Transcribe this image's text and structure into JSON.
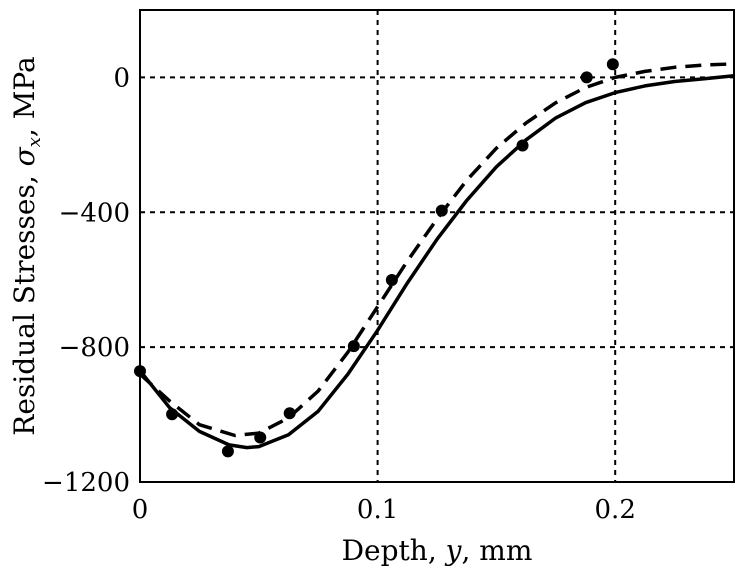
{
  "chart_data": {
    "type": "line",
    "title": "",
    "xlabel": "Depth, y, mm",
    "ylabel": "Residual Stresses, σx, MPa",
    "xlim": [
      0,
      0.25
    ],
    "ylim": [
      -1200,
      200
    ],
    "xticks": [
      0,
      0.1,
      0.2
    ],
    "xtick_labels": [
      "0",
      "0.1",
      "0.2"
    ],
    "yticks": [
      0,
      -400,
      -800,
      -1200
    ],
    "ytick_labels": [
      "0",
      "−400",
      "−800",
      "−1200"
    ],
    "grid": true,
    "series": [
      {
        "name": "measured",
        "style": "markers",
        "x": [
          0,
          0.0135,
          0.037,
          0.0506,
          0.063,
          0.09,
          0.106,
          0.127,
          0.161,
          0.188,
          0.199
        ],
        "y": [
          -871,
          -999,
          -1109,
          -1068,
          -996,
          -797,
          -601,
          -395,
          -202,
          0,
          39
        ]
      },
      {
        "name": "solid",
        "style": "solid",
        "x": [
          0,
          0.0125,
          0.025,
          0.0375,
          0.045,
          0.05,
          0.0625,
          0.075,
          0.0875,
          0.1,
          0.1125,
          0.125,
          0.1375,
          0.15,
          0.1625,
          0.175,
          0.1875,
          0.2,
          0.2125,
          0.225,
          0.2375,
          0.25
        ],
        "y": [
          -870,
          -980,
          -1050,
          -1090,
          -1098,
          -1095,
          -1060,
          -990,
          -880,
          -750,
          -610,
          -480,
          -365,
          -265,
          -185,
          -120,
          -75,
          -45,
          -25,
          -12,
          -4,
          5
        ]
      },
      {
        "name": "dashed",
        "style": "dashed",
        "x": [
          0,
          0.0125,
          0.025,
          0.04,
          0.05,
          0.0625,
          0.075,
          0.0875,
          0.1,
          0.1125,
          0.125,
          0.1375,
          0.15,
          0.1625,
          0.175,
          0.1875,
          0.2,
          0.2125,
          0.225,
          0.2375,
          0.25
        ],
        "y": [
          -880,
          -960,
          -1030,
          -1062,
          -1055,
          -1010,
          -930,
          -815,
          -680,
          -545,
          -420,
          -305,
          -210,
          -135,
          -75,
          -30,
          0,
          18,
          30,
          37,
          40
        ]
      }
    ]
  }
}
